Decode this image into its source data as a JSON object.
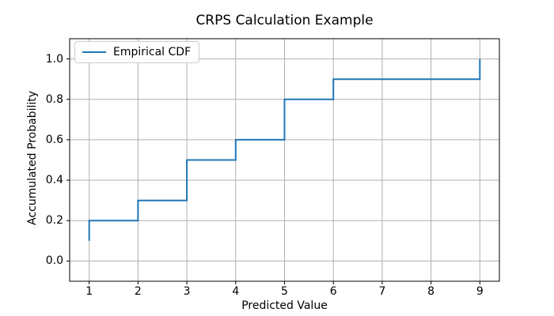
{
  "figure": {
    "background": "#ffffff"
  },
  "chart_data": {
    "type": "line",
    "subtype": "empirical-cdf-step",
    "title": "CRPS Calculation Example",
    "xlabel": "Predicted Value",
    "ylabel": "Accumulated Probability",
    "grid": true,
    "grid_color": "#b0b0b0",
    "legend_position": "upper left",
    "legend": [
      {
        "label": "Empirical CDF",
        "color": "#1f77b4"
      }
    ],
    "xlim": [
      0.6,
      9.4
    ],
    "ylim": [
      -0.1,
      1.1
    ],
    "xticks": [
      1,
      2,
      3,
      4,
      5,
      6,
      7,
      8,
      9
    ],
    "xtick_labels": [
      "1",
      "2",
      "3",
      "4",
      "5",
      "6",
      "7",
      "8",
      "9"
    ],
    "yticks": [
      0.0,
      0.2,
      0.4,
      0.6,
      0.8,
      1.0
    ],
    "ytick_labels": [
      "0.0",
      "0.2",
      "0.4",
      "0.6",
      "0.8",
      "1.0"
    ],
    "series": [
      {
        "name": "Empirical CDF",
        "color": "#1f77b4",
        "points": [
          [
            1,
            0.1
          ],
          [
            1,
            0.2
          ],
          [
            2,
            0.2
          ],
          [
            2,
            0.3
          ],
          [
            3,
            0.3
          ],
          [
            3,
            0.5
          ],
          [
            4,
            0.5
          ],
          [
            4,
            0.6
          ],
          [
            5,
            0.6
          ],
          [
            5,
            0.8
          ],
          [
            6,
            0.8
          ],
          [
            6,
            0.9
          ],
          [
            9,
            0.9
          ],
          [
            9,
            1.0
          ]
        ]
      }
    ],
    "jump_x_values": [
      1,
      2,
      3,
      4,
      5,
      6,
      9
    ],
    "cdf_levels": [
      0.1,
      0.2,
      0.3,
      0.5,
      0.6,
      0.8,
      0.9,
      1.0
    ]
  }
}
